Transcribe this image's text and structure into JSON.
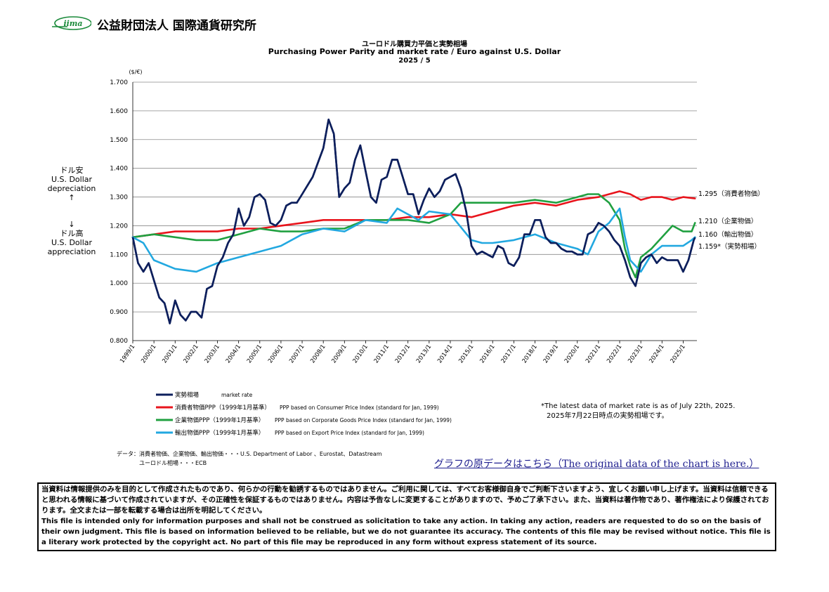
{
  "header": {
    "logo_text": "iima",
    "org_name": "公益財団法人 国際通貨研究所"
  },
  "titles": {
    "jp": "ユーロドル購買力平価と実勢相場",
    "en": "Purchasing Power Parity and market rate / Euro against U.S. Dollar",
    "date": "2025 / 5"
  },
  "side_labels": {
    "up_jp": "ドル安",
    "up_en1": "U.S. Dollar",
    "up_en2": "depreciation",
    "up_arrow": "↑",
    "down_arrow": "↓",
    "down_jp": "ドル高",
    "down_en1": "U.S. Dollar",
    "down_en2": "appreciation"
  },
  "chart_data": {
    "type": "line",
    "ylabel": "($/€)",
    "ylim": [
      0.8,
      1.7
    ],
    "yticks": [
      "1.700",
      "1.600",
      "1.500",
      "1.400",
      "1.300",
      "1.200",
      "1.100",
      "1.000",
      "0.900",
      "0.800"
    ],
    "xlim": [
      1999.0,
      2025.65
    ],
    "xticks": [
      "1999/1",
      "2000/1",
      "2001/1",
      "2002/1",
      "2003/1",
      "2004/1",
      "2005/1",
      "2006/1",
      "2007/1",
      "2008/1",
      "2009/1",
      "2010/1",
      "2011/1",
      "2012/1",
      "2013/1",
      "2014/1",
      "2015/1",
      "2016/1",
      "2017/1",
      "2018/1",
      "2019/1",
      "2020/1",
      "2021/1",
      "2022/1",
      "2023/1",
      "2024/1",
      "2025/1"
    ],
    "grid": true,
    "series": [
      {
        "name": "実勢相場 market rate",
        "color": "#0d1f5c",
        "x": [
          1999.0,
          1999.25,
          1999.5,
          1999.75,
          2000.0,
          2000.25,
          2000.5,
          2000.75,
          2001.0,
          2001.25,
          2001.5,
          2001.75,
          2002.0,
          2002.25,
          2002.5,
          2002.75,
          2003.0,
          2003.25,
          2003.5,
          2003.75,
          2004.0,
          2004.25,
          2004.5,
          2004.75,
          2005.0,
          2005.25,
          2005.5,
          2005.75,
          2006.0,
          2006.25,
          2006.5,
          2006.75,
          2007.0,
          2007.25,
          2007.5,
          2007.75,
          2008.0,
          2008.25,
          2008.5,
          2008.75,
          2009.0,
          2009.25,
          2009.5,
          2009.75,
          2010.0,
          2010.25,
          2010.5,
          2010.75,
          2011.0,
          2011.25,
          2011.5,
          2011.75,
          2012.0,
          2012.25,
          2012.5,
          2012.75,
          2013.0,
          2013.25,
          2013.5,
          2013.75,
          2014.0,
          2014.25,
          2014.5,
          2014.75,
          2015.0,
          2015.25,
          2015.5,
          2015.75,
          2016.0,
          2016.25,
          2016.5,
          2016.75,
          2017.0,
          2017.25,
          2017.5,
          2017.75,
          2018.0,
          2018.25,
          2018.5,
          2018.75,
          2019.0,
          2019.25,
          2019.5,
          2019.75,
          2020.0,
          2020.25,
          2020.5,
          2020.75,
          2021.0,
          2021.25,
          2021.5,
          2021.75,
          2022.0,
          2022.25,
          2022.5,
          2022.75,
          2023.0,
          2023.25,
          2023.5,
          2023.75,
          2024.0,
          2024.25,
          2024.5,
          2024.75,
          2025.0,
          2025.25,
          2025.5,
          2025.56
        ],
        "y": [
          1.16,
          1.07,
          1.04,
          1.07,
          1.01,
          0.95,
          0.93,
          0.86,
          0.94,
          0.89,
          0.87,
          0.9,
          0.9,
          0.88,
          0.98,
          0.99,
          1.06,
          1.09,
          1.14,
          1.17,
          1.26,
          1.2,
          1.23,
          1.3,
          1.31,
          1.29,
          1.21,
          1.2,
          1.22,
          1.27,
          1.28,
          1.28,
          1.31,
          1.34,
          1.37,
          1.42,
          1.47,
          1.57,
          1.52,
          1.3,
          1.33,
          1.35,
          1.43,
          1.48,
          1.39,
          1.3,
          1.28,
          1.36,
          1.37,
          1.43,
          1.43,
          1.37,
          1.31,
          1.31,
          1.24,
          1.29,
          1.33,
          1.3,
          1.32,
          1.36,
          1.37,
          1.38,
          1.33,
          1.25,
          1.13,
          1.1,
          1.11,
          1.1,
          1.09,
          1.13,
          1.12,
          1.07,
          1.06,
          1.09,
          1.17,
          1.17,
          1.22,
          1.22,
          1.16,
          1.14,
          1.14,
          1.12,
          1.11,
          1.11,
          1.1,
          1.1,
          1.17,
          1.18,
          1.21,
          1.2,
          1.18,
          1.15,
          1.13,
          1.08,
          1.02,
          0.99,
          1.07,
          1.09,
          1.1,
          1.07,
          1.09,
          1.08,
          1.08,
          1.08,
          1.04,
          1.08,
          1.15,
          1.159
        ]
      },
      {
        "name": "消費者物価PPP（1999年1月基準） PPP based on Consumer Price Index (standard for Jan, 1999)",
        "color": "#e8141c",
        "x": [
          1999.0,
          2000.0,
          2001.0,
          2002.0,
          2003.0,
          2004.0,
          2005.0,
          2006.0,
          2007.0,
          2008.0,
          2009.0,
          2010.0,
          2011.0,
          2012.0,
          2013.0,
          2014.0,
          2015.0,
          2016.0,
          2017.0,
          2018.0,
          2019.0,
          2020.0,
          2021.0,
          2021.5,
          2022.0,
          2022.5,
          2023.0,
          2023.5,
          2024.0,
          2024.5,
          2025.0,
          2025.56
        ],
        "y": [
          1.16,
          1.17,
          1.18,
          1.18,
          1.18,
          1.19,
          1.19,
          1.2,
          1.21,
          1.22,
          1.22,
          1.22,
          1.22,
          1.23,
          1.23,
          1.24,
          1.23,
          1.25,
          1.27,
          1.28,
          1.27,
          1.29,
          1.3,
          1.31,
          1.32,
          1.31,
          1.29,
          1.3,
          1.3,
          1.29,
          1.3,
          1.295
        ]
      },
      {
        "name": "企業物価PPP（1999年1月基準） PPP based on Corporate Goods Price Index (standard for Jan, 1999)",
        "color": "#20a040",
        "x": [
          1999.0,
          2000.0,
          2001.0,
          2002.0,
          2003.0,
          2004.0,
          2005.0,
          2006.0,
          2007.0,
          2008.0,
          2009.0,
          2010.0,
          2011.0,
          2012.0,
          2013.0,
          2014.0,
          2014.5,
          2015.0,
          2016.0,
          2017.0,
          2018.0,
          2019.0,
          2020.0,
          2020.5,
          2021.0,
          2021.5,
          2022.0,
          2022.25,
          2022.5,
          2022.75,
          2023.0,
          2023.5,
          2024.0,
          2024.5,
          2025.0,
          2025.4,
          2025.56
        ],
        "y": [
          1.16,
          1.17,
          1.16,
          1.15,
          1.15,
          1.17,
          1.19,
          1.18,
          1.18,
          1.19,
          1.19,
          1.22,
          1.22,
          1.22,
          1.21,
          1.24,
          1.28,
          1.28,
          1.28,
          1.28,
          1.29,
          1.28,
          1.3,
          1.31,
          1.31,
          1.28,
          1.22,
          1.12,
          1.06,
          1.02,
          1.09,
          1.12,
          1.16,
          1.2,
          1.18,
          1.18,
          1.21
        ]
      },
      {
        "name": "輸出物価PPP（1999年1月基準） PPP based on Export Price Index (standard for Jan, 1999)",
        "color": "#22a8e0",
        "x": [
          1999.0,
          1999.5,
          2000.0,
          2001.0,
          2002.0,
          2003.0,
          2004.0,
          2005.0,
          2006.0,
          2007.0,
          2008.0,
          2009.0,
          2010.0,
          2011.0,
          2011.5,
          2012.0,
          2012.5,
          2013.0,
          2014.0,
          2015.0,
          2015.5,
          2016.0,
          2017.0,
          2018.0,
          2019.0,
          2020.0,
          2020.5,
          2021.0,
          2021.5,
          2022.0,
          2022.25,
          2022.5,
          2023.0,
          2023.5,
          2024.0,
          2024.5,
          2025.0,
          2025.4,
          2025.56
        ],
        "y": [
          1.16,
          1.14,
          1.08,
          1.05,
          1.04,
          1.07,
          1.09,
          1.11,
          1.13,
          1.17,
          1.19,
          1.18,
          1.22,
          1.21,
          1.26,
          1.24,
          1.22,
          1.25,
          1.24,
          1.15,
          1.14,
          1.14,
          1.15,
          1.17,
          1.14,
          1.12,
          1.1,
          1.18,
          1.21,
          1.26,
          1.16,
          1.08,
          1.04,
          1.1,
          1.13,
          1.13,
          1.13,
          1.15,
          1.16
        ]
      }
    ],
    "end_labels": [
      {
        "text": "1.295（消費者物価）",
        "color": "#000000",
        "value": 1.295
      },
      {
        "text": "1.210（企業物価）",
        "color": "#000000",
        "value": 1.21
      },
      {
        "text": "1.160（輸出物価）",
        "color": "#000000",
        "value": 1.16
      },
      {
        "text": "1.159*（実勢相場）",
        "color": "#000000",
        "value": 1.159
      }
    ],
    "legend": {
      "placement": "bottom-left",
      "items": [
        {
          "jp": "実勢相場",
          "en": "market rate"
        },
        {
          "jp": "消費者物価PPP（1999年1月基準）",
          "en": "PPP based on Consumer Price Index (standard for Jan, 1999)"
        },
        {
          "jp": "企業物価PPP（1999年1月基準）",
          "en": "PPP based on Corporate Goods Price Index (standard for Jan, 1999)"
        },
        {
          "jp": "輸出物価PPP（1999年1月基準）",
          "en": "PPP based on Export Price Index (standard for Jan, 1999)"
        }
      ]
    }
  },
  "notes": {
    "line1": "*The latest data of market rate is as of July 22th, 2025.",
    "line2": "2025年7月22日時点の実勢相場です。"
  },
  "source": {
    "line1": "データ：消費者物価、企業物価、輸出物価・・・U.S. Department of Labor 、Eurostat、Datastream",
    "line2": "ユーロドル相場・・・ECB"
  },
  "link_text": "グラフの原データはこちら（The original data of the chart is here.）",
  "disclaimer": {
    "jp": "当資料は情報提供のみを目的として作成されたものであり、何らかの行動を勧誘するものではありません。ご利用に関しては、すべてお客様御自身でご判断下さいますよう、宜しくお願い申し上げます。当資料は信頼できると思われる情報に基づいて作成されていますが、その正確性を保証するものではありません。内容は予告なしに変更することがありますので、予めご了承下さい。また、当資料は著作物であり、著作権法により保護されております。全文または一部を転載する場合は出所を明記してください。",
    "en": "This file is intended only for information purposes and shall not be construed as solicitation to take any action. In taking any action, readers are requested to do so on the basis of their own judgment. This file is based on information believed to be reliable, but we do not guarantee its accuracy. The contents of this file may be revised without notice. This file is a literary work protected by the copyright act. No part of this file may be reproduced in any form without express statement of its source."
  }
}
